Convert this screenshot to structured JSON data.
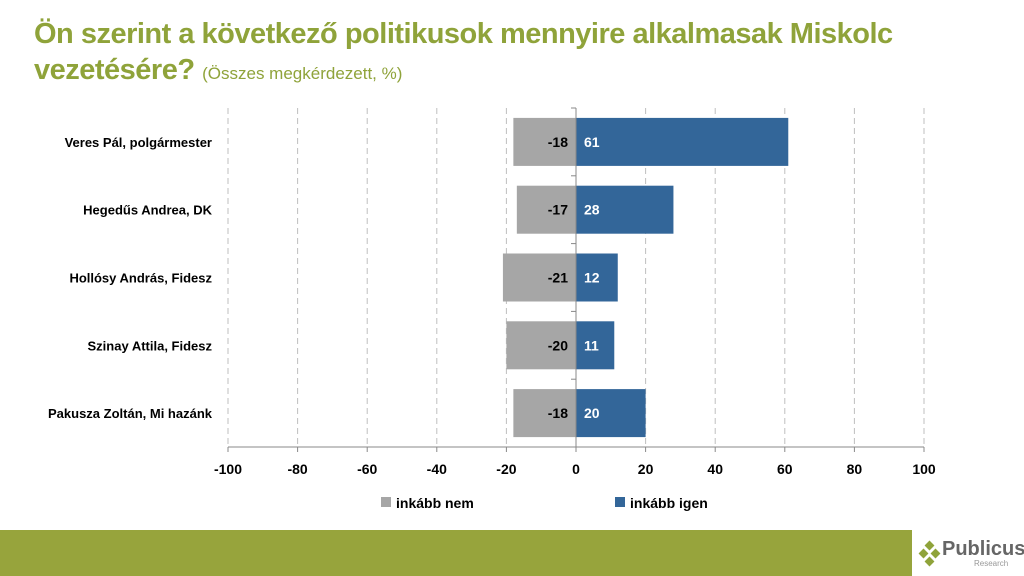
{
  "title": {
    "main": "Ön szerint a következő politikusok mennyire alkalmasak Miskolc vezetésére?",
    "sub": "(Összes megkérdezett, %)"
  },
  "logo": {
    "name": "Publicus",
    "tagline": "Research"
  },
  "colors": {
    "neg": "#a6a6a6",
    "pos": "#336699",
    "title": "#8fa33a",
    "footer": "#97a43c"
  },
  "chart_data": {
    "type": "bar",
    "orientation": "horizontal",
    "stacked": "diverging",
    "categories": [
      "Veres Pál, polgármester",
      "Hegedűs Andrea, DK",
      "Hollósy András, Fidesz",
      "Szinay Attila, Fidesz",
      "Pakusza Zoltán, Mi hazánk"
    ],
    "series": [
      {
        "name": "inkább nem",
        "values": [
          -18,
          -17,
          -21,
          -20,
          -18
        ]
      },
      {
        "name": "inkább igen",
        "values": [
          61,
          28,
          12,
          11,
          20
        ]
      }
    ],
    "xlim": [
      -100,
      100
    ],
    "xticks": [
      -100,
      -80,
      -60,
      -40,
      -20,
      0,
      20,
      40,
      60,
      80,
      100
    ],
    "grid": "vertical dashed",
    "legend": "bottom"
  }
}
